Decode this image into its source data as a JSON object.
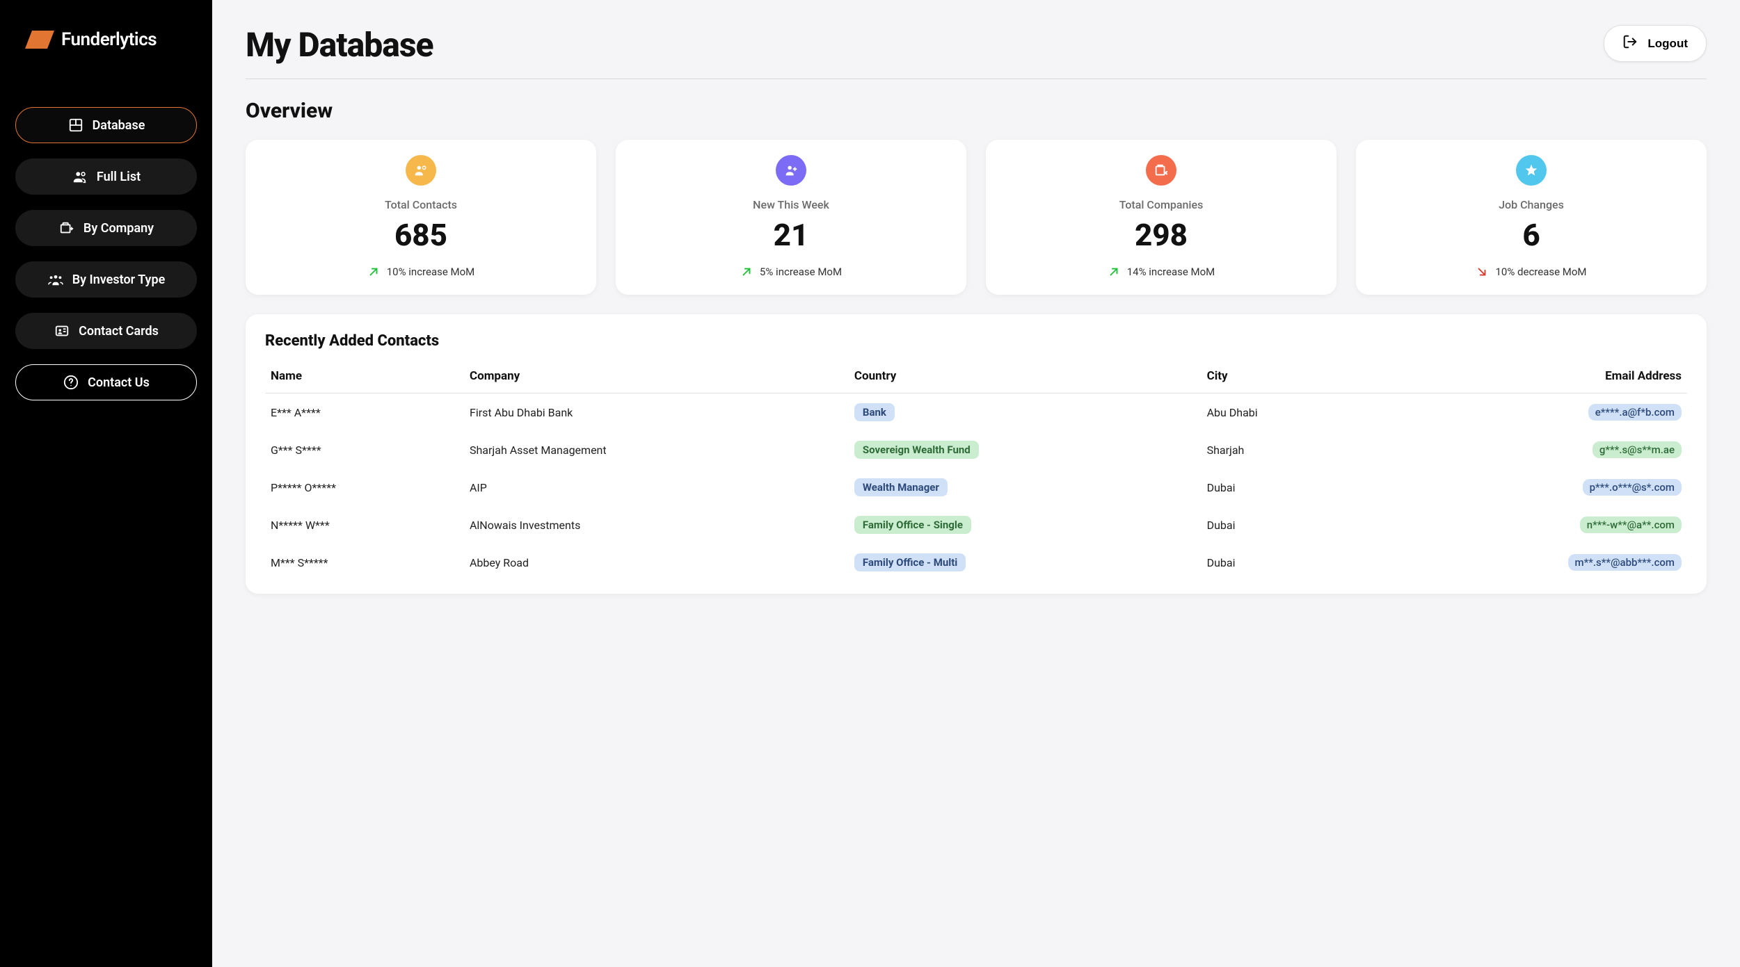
{
  "brand": "Funderlytics",
  "brand_accent": "#e37533",
  "sidebar": {
    "items": [
      {
        "label": "Database",
        "icon": "dashboard-icon",
        "active": true
      },
      {
        "label": "Full List",
        "icon": "people-icon",
        "active": false
      },
      {
        "label": "By Company",
        "icon": "company-icon",
        "active": false
      },
      {
        "label": "By Investor Type",
        "icon": "groups-icon",
        "active": false
      },
      {
        "label": "Contact Cards",
        "icon": "id-card-icon",
        "active": false
      }
    ],
    "contact_label": "Contact Us"
  },
  "header": {
    "title": "My Database",
    "logout_label": "Logout"
  },
  "overview": {
    "title": "Overview",
    "cards": [
      {
        "label": "Total Contacts",
        "value": "685",
        "trend_text": "10% increase MoM",
        "trend_direction": "up",
        "trend_color": "#1fbf3b",
        "icon_bg": "#f6b84a",
        "icon": "contacts-icon"
      },
      {
        "label": "New This Week",
        "value": "21",
        "trend_text": "5% increase MoM",
        "trend_direction": "up",
        "trend_color": "#1fbf3b",
        "icon_bg": "#7c6cf5",
        "icon": "person-add-icon"
      },
      {
        "label": "Total Companies",
        "value": "298",
        "trend_text": "14% increase MoM",
        "trend_direction": "up",
        "trend_color": "#1fbf3b",
        "icon_bg": "#f36d4d",
        "icon": "company-icon"
      },
      {
        "label": "Job Changes",
        "value": "6",
        "trend_text": "10% decrease MoM",
        "trend_direction": "down",
        "trend_color": "#d93a2b",
        "icon_bg": "#52c7ed",
        "icon": "star-icon"
      }
    ]
  },
  "recent": {
    "title": "Recently Added Contacts",
    "columns": [
      "Name",
      "Company",
      "Country",
      "City",
      "Email Address"
    ],
    "badge_colors": {
      "blue_bg": "#cfe0f7",
      "blue_fg": "#2d4a7a",
      "green_bg": "#c9edce",
      "green_fg": "#2f6b38"
    },
    "rows": [
      {
        "name": "E*** A****",
        "company": "First Abu Dhabi Bank",
        "tag": "Bank",
        "tag_style": "blue",
        "city": "Abu Dhabi",
        "email": "e****.a@f*b.com",
        "email_style": "blue"
      },
      {
        "name": "G*** S****",
        "company": "Sharjah Asset Management",
        "tag": "Sovereign Wealth Fund",
        "tag_style": "green",
        "city": "Sharjah",
        "email": "g***.s@s**m.ae",
        "email_style": "green"
      },
      {
        "name": "P***** O*****",
        "company": "AIP",
        "tag": "Wealth Manager",
        "tag_style": "blue",
        "city": "Dubai",
        "email": "p***.o***@s*.com",
        "email_style": "blue"
      },
      {
        "name": "N***** W***",
        "company": "AlNowais Investments",
        "tag": "Family Office - Single",
        "tag_style": "green",
        "city": "Dubai",
        "email": "n***-w**@a**.com",
        "email_style": "green"
      },
      {
        "name": "M*** S*****",
        "company": "Abbey Road",
        "tag": "Family Office - Multi",
        "tag_style": "blue",
        "city": "Dubai",
        "email": "m**.s**@abb***.com",
        "email_style": "blue"
      }
    ]
  }
}
